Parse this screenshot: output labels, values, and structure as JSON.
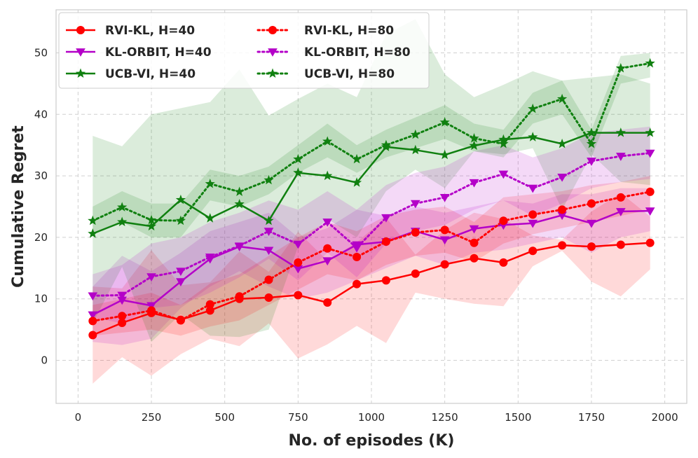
{
  "chart_data": {
    "type": "line",
    "xlabel": "No. of episodes (K)",
    "ylabel": "Cumulative Regret",
    "xlim": [
      -75,
      2075
    ],
    "ylim": [
      -7,
      57
    ],
    "xticks": [
      0,
      250,
      500,
      750,
      1000,
      1250,
      1500,
      1750,
      2000
    ],
    "yticks": [
      0,
      10,
      20,
      30,
      40,
      50
    ],
    "grid": true,
    "legend_position": "top-left",
    "x": [
      50,
      150,
      250,
      350,
      450,
      550,
      650,
      750,
      850,
      950,
      1050,
      1150,
      1250,
      1350,
      1450,
      1550,
      1650,
      1750,
      1850,
      1950
    ],
    "series": [
      {
        "name": "RVI-KL, H=40",
        "color": "#ff0000",
        "linestyle": "solid",
        "marker": "circle",
        "values": [
          4.1,
          6.1,
          7.7,
          6.6,
          8.1,
          10.0,
          10.2,
          10.6,
          9.4,
          12.4,
          13.0,
          14.1,
          15.6,
          16.6,
          15.9,
          17.8,
          18.7,
          18.5,
          18.8,
          19.1
        ],
        "lower": [
          -3.8,
          0.5,
          -2.5,
          1.0,
          3.5,
          2.3,
          6.0,
          0.3,
          2.6,
          5.6,
          2.8,
          11.0,
          10.0,
          9.2,
          8.8,
          15.3,
          17.8,
          12.8,
          10.4,
          14.8
        ],
        "upper": [
          12.0,
          11.7,
          17.9,
          12.2,
          12.7,
          17.7,
          14.4,
          20.9,
          16.2,
          19.2,
          23.2,
          17.2,
          21.2,
          24.0,
          23.0,
          20.3,
          19.6,
          24.2,
          27.2,
          23.4
        ]
      },
      {
        "name": "KL-ORBIT, H=40",
        "color": "#b400c8",
        "linestyle": "solid",
        "marker": "triangle-down",
        "values": [
          7.4,
          9.8,
          8.9,
          12.8,
          16.5,
          18.5,
          17.9,
          14.9,
          16.2,
          18.8,
          19.3,
          21.0,
          19.6,
          21.4,
          22.0,
          22.3,
          23.6,
          22.3,
          24.2,
          24.3
        ],
        "lower": [
          3.0,
          2.5,
          3.5,
          8.5,
          12.0,
          14.5,
          12.0,
          10.0,
          11.0,
          13.0,
          15.0,
          17.0,
          15.5,
          17.5,
          18.0,
          19.0,
          20.0,
          17.5,
          20.0,
          21.0
        ],
        "upper": [
          12.0,
          17.0,
          14.5,
          17.5,
          21.0,
          22.5,
          24.0,
          20.0,
          21.5,
          24.5,
          23.5,
          25.0,
          24.0,
          25.0,
          26.0,
          25.5,
          27.0,
          27.0,
          28.0,
          28.0
        ]
      },
      {
        "name": "UCB-VI, H=40",
        "color": "#108010",
        "linestyle": "solid",
        "marker": "star",
        "values": [
          20.6,
          22.5,
          21.8,
          26.1,
          23.1,
          25.4,
          22.7,
          30.5,
          30.0,
          28.9,
          34.7,
          34.2,
          33.4,
          34.9,
          35.9,
          36.3,
          35.2,
          37.0,
          37.0,
          37.0
        ],
        "lower": [
          6.0,
          15.2,
          3.0,
          7.5,
          4.0,
          3.8,
          5.0,
          18.5,
          23.0,
          20.0,
          27.5,
          31.0,
          28.0,
          34.0,
          33.5,
          34.5,
          24.5,
          33.5,
          29.0,
          28.5
        ],
        "upper": [
          36.5,
          34.8,
          40.0,
          41.0,
          42.0,
          47.3,
          39.8,
          42.5,
          45.0,
          42.8,
          53.0,
          55.5,
          46.5,
          42.8,
          44.8,
          47.0,
          45.5,
          46.0,
          46.5,
          45.0
        ]
      },
      {
        "name": "RVI-KL, H=80",
        "color": "#ff0000",
        "linestyle": "dotted",
        "marker": "circle",
        "values": [
          6.4,
          7.2,
          8.1,
          6.5,
          9.1,
          10.4,
          13.1,
          15.9,
          18.2,
          16.8,
          19.3,
          20.8,
          21.2,
          19.1,
          22.7,
          23.7,
          24.5,
          25.5,
          26.5,
          27.4
        ],
        "lower": [
          4.0,
          4.5,
          5.0,
          4.0,
          5.5,
          6.5,
          9.0,
          11.5,
          14.0,
          13.0,
          15.5,
          17.0,
          17.5,
          16.0,
          19.0,
          20.5,
          21.5,
          22.5,
          23.5,
          24.5
        ],
        "upper": [
          9.0,
          10.0,
          11.0,
          9.0,
          12.5,
          14.0,
          17.0,
          20.0,
          22.5,
          21.0,
          23.5,
          24.5,
          25.0,
          22.5,
          26.5,
          27.0,
          27.5,
          28.5,
          29.0,
          30.0
        ]
      },
      {
        "name": "KL-ORBIT, H=80",
        "color": "#b400c8",
        "linestyle": "dotted",
        "marker": "triangle-down",
        "values": [
          10.5,
          10.6,
          13.6,
          14.5,
          16.8,
          18.6,
          21.0,
          18.9,
          22.5,
          18.3,
          23.2,
          25.5,
          26.5,
          28.9,
          30.3,
          28.0,
          29.8,
          32.4,
          33.2,
          33.7
        ],
        "lower": [
          7.0,
          6.0,
          8.5,
          9.0,
          11.0,
          13.5,
          16.5,
          13.0,
          17.5,
          13.5,
          19.0,
          21.0,
          22.0,
          24.5,
          26.0,
          23.5,
          25.5,
          28.0,
          29.0,
          29.5
        ],
        "upper": [
          14.0,
          15.5,
          19.0,
          20.0,
          22.5,
          24.0,
          26.0,
          24.5,
          27.5,
          24.5,
          28.5,
          30.5,
          31.5,
          34.0,
          35.0,
          33.0,
          34.5,
          37.0,
          37.5,
          38.0
        ]
      },
      {
        "name": "UCB-VI, H=80",
        "color": "#108010",
        "linestyle": "dotted",
        "marker": "star",
        "values": [
          22.7,
          24.9,
          22.8,
          22.7,
          28.7,
          27.4,
          29.3,
          32.7,
          35.6,
          32.7,
          35.0,
          36.7,
          38.7,
          36.1,
          35.2,
          40.9,
          42.5,
          35.2,
          47.5,
          48.3
        ],
        "lower": [
          20.5,
          22.5,
          20.0,
          20.0,
          26.0,
          25.0,
          27.0,
          30.5,
          33.0,
          30.5,
          33.0,
          34.5,
          36.0,
          34.0,
          33.0,
          38.5,
          40.0,
          33.0,
          45.0,
          46.0
        ],
        "upper": [
          25.0,
          27.5,
          25.5,
          25.5,
          31.0,
          30.0,
          31.5,
          35.0,
          38.5,
          35.0,
          37.5,
          39.5,
          41.5,
          38.5,
          37.5,
          43.5,
          45.5,
          37.5,
          49.5,
          50.0
        ]
      }
    ]
  }
}
